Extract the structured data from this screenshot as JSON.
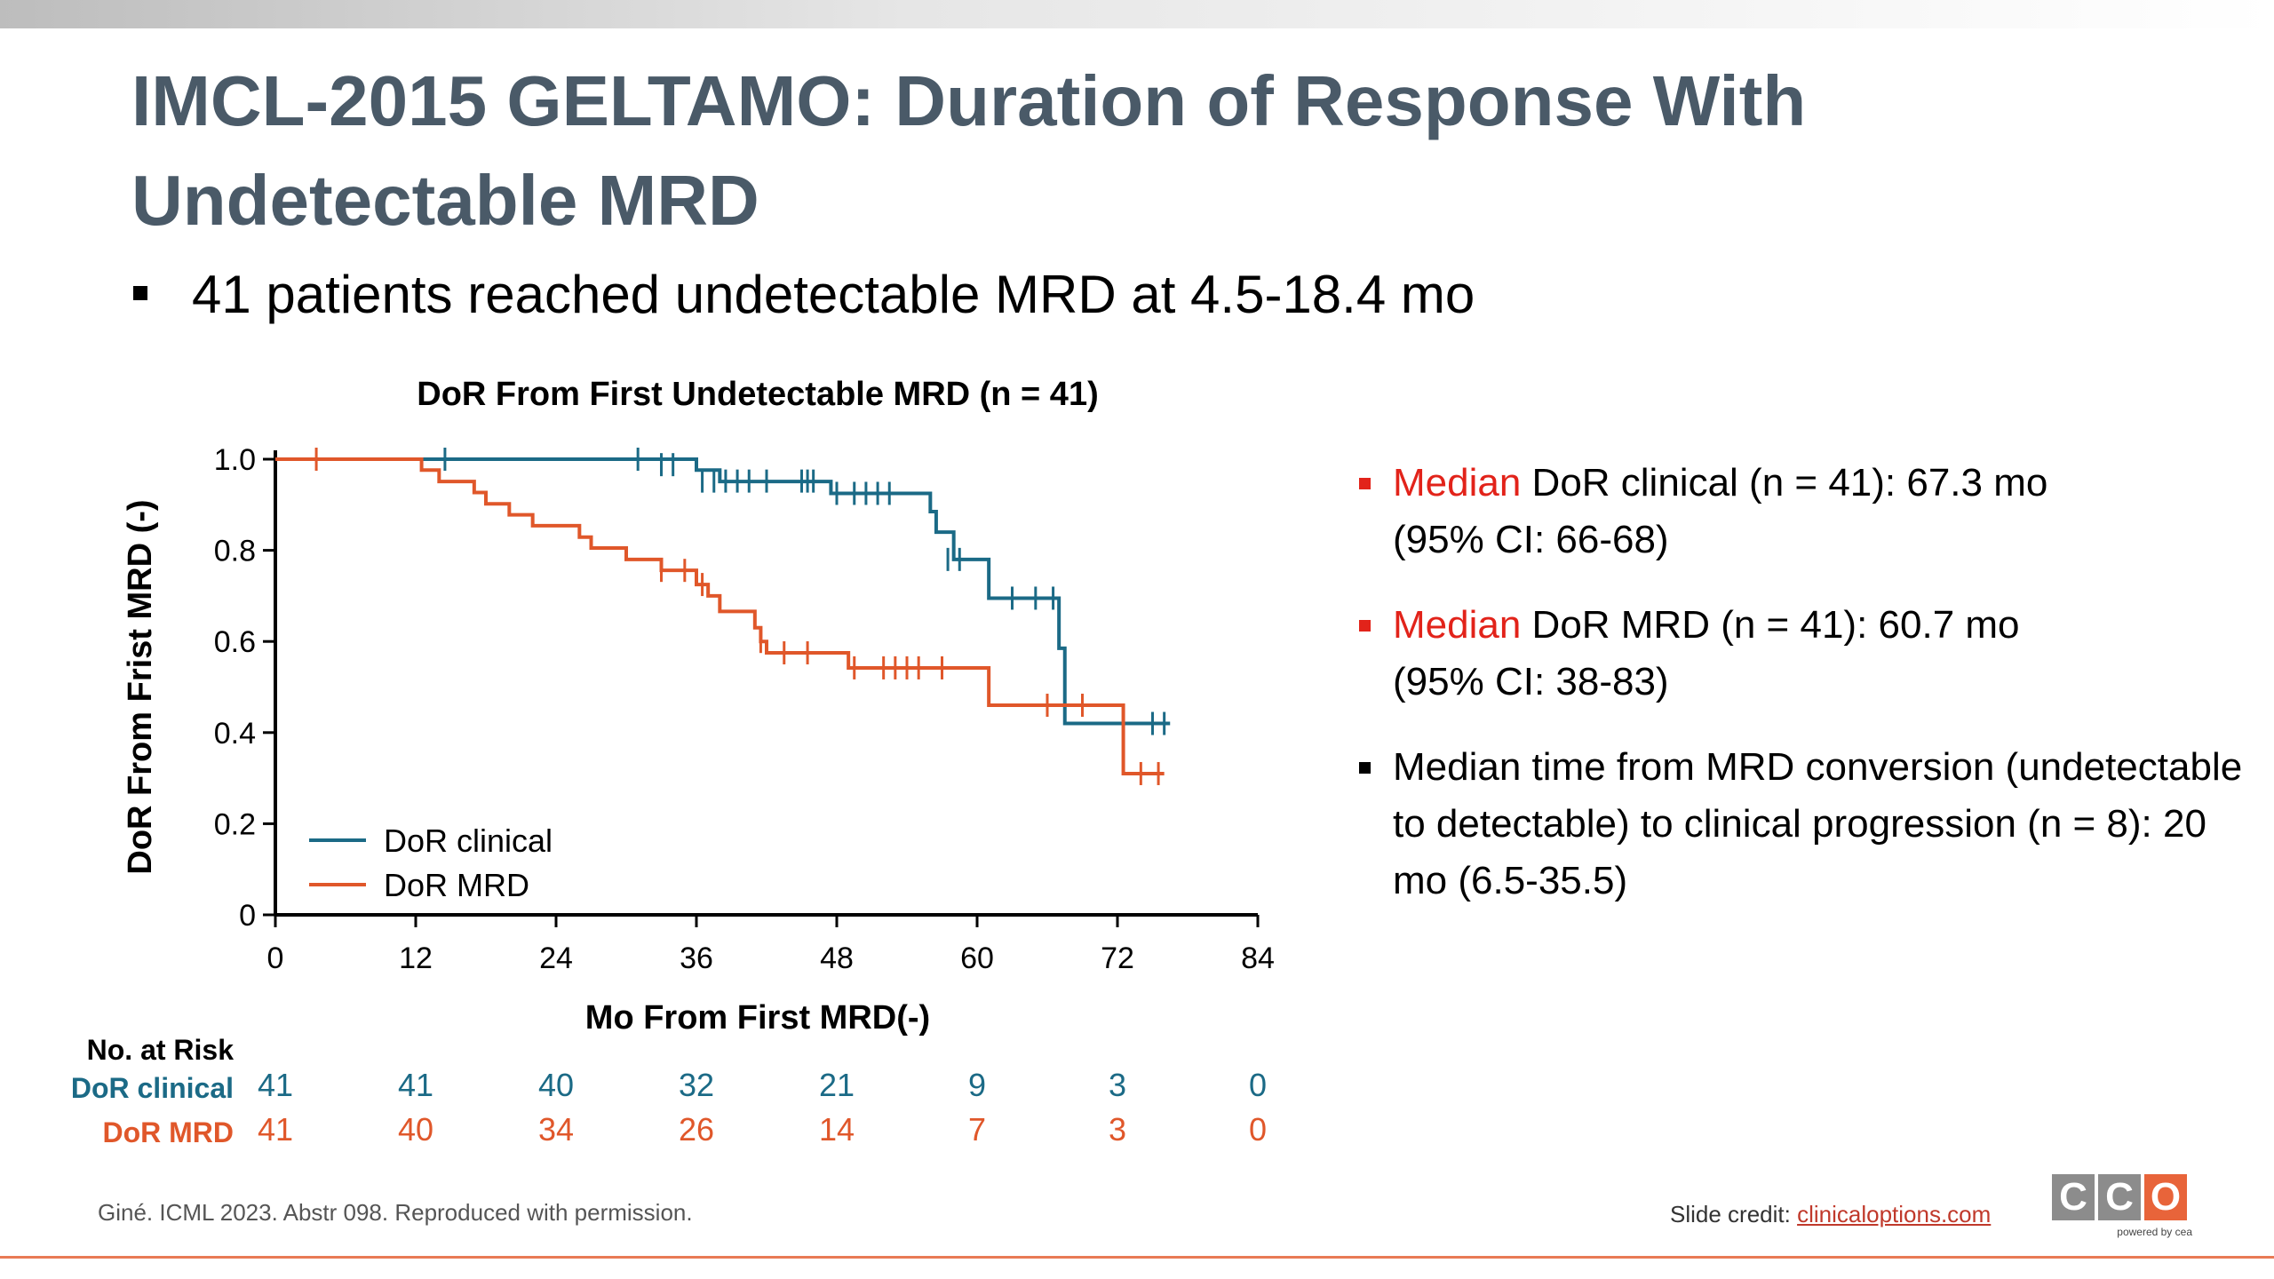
{
  "slide": {
    "title": "IMCL-2015 GELTAMO: Duration of Response With Undetectable MRD",
    "main_bullet": "41 patients reached undetectable MRD at 4.5-18.4 mo",
    "right_bullets": [
      {
        "highlight": "Median",
        "rest": " DoR clinical (n = 41): 67.3 mo",
        "line2": "(95% CI: 66-68)",
        "marker_color": "#e2231a"
      },
      {
        "highlight": "Median",
        "rest": " DoR MRD (n  = 41): 60.7 mo",
        "line2": "(95% CI: 38-83)",
        "marker_color": "#e2231a"
      },
      {
        "text": "Median time from MRD conversion (undetectable to detectable) to clinical progression (n = 8): 20 mo (6.5-35.5)",
        "marker_color": "#000000"
      }
    ],
    "footer_citation": "Giné. ICML 2023. Abstr 098. Reproduced with permission.",
    "footer_credit_label": "Slide credit: ",
    "footer_credit_link": "clinicaloptions.com",
    "logo": {
      "letters": [
        "C",
        "C",
        "O"
      ],
      "powered_by": "powered by cea"
    }
  },
  "colors": {
    "title": "#4a5a68",
    "clinical": "#1b6a86",
    "mrd": "#e0572a",
    "accent": "#e2231a"
  },
  "chart_data": {
    "type": "line",
    "title": "DoR From First Undetectable MRD (n = 41)",
    "xlabel": "Mo From First MRD(-)",
    "ylabel": "DoR From Frist MRD (-)",
    "xlim": [
      0,
      84
    ],
    "ylim": [
      0,
      1.0
    ],
    "xticks": [
      0,
      12,
      24,
      36,
      48,
      60,
      72,
      84
    ],
    "yticks": [
      0,
      0.2,
      0.4,
      0.6,
      0.8,
      1.0
    ],
    "ytick_labels": [
      "0",
      "0.2",
      "0.4",
      "0.6",
      "0.8",
      "1.0"
    ],
    "legend_position": "bottom-left",
    "series": [
      {
        "name": "DoR clinical",
        "color": "#1b6a86",
        "steps": [
          [
            0,
            1.0
          ],
          [
            36,
            0.976
          ],
          [
            38,
            0.951
          ],
          [
            47.5,
            0.925
          ],
          [
            56,
            0.885
          ],
          [
            56.5,
            0.84
          ],
          [
            58,
            0.78
          ],
          [
            61,
            0.695
          ],
          [
            67,
            0.585
          ],
          [
            67.5,
            0.42
          ],
          [
            76.5,
            0.42
          ]
        ],
        "censored": [
          [
            14.5,
            1.0
          ],
          [
            31,
            1.0
          ],
          [
            33,
            0.988
          ],
          [
            34,
            0.988
          ],
          [
            36.5,
            0.952
          ],
          [
            37.5,
            0.952
          ],
          [
            38.5,
            0.952
          ],
          [
            39.5,
            0.952
          ],
          [
            40.5,
            0.952
          ],
          [
            42,
            0.952
          ],
          [
            45,
            0.952
          ],
          [
            45.5,
            0.952
          ],
          [
            46,
            0.952
          ],
          [
            48,
            0.925
          ],
          [
            49.5,
            0.925
          ],
          [
            50.5,
            0.925
          ],
          [
            51.5,
            0.925
          ],
          [
            52.5,
            0.925
          ],
          [
            57.5,
            0.78
          ],
          [
            58.5,
            0.78
          ],
          [
            63,
            0.695
          ],
          [
            65,
            0.695
          ],
          [
            66.5,
            0.695
          ],
          [
            75,
            0.42
          ],
          [
            76,
            0.42
          ]
        ]
      },
      {
        "name": "DoR MRD",
        "color": "#e0572a",
        "steps": [
          [
            0,
            1.0
          ],
          [
            12.5,
            0.976
          ],
          [
            14,
            0.951
          ],
          [
            17,
            0.927
          ],
          [
            18,
            0.902
          ],
          [
            20,
            0.878
          ],
          [
            22,
            0.854
          ],
          [
            26,
            0.829
          ],
          [
            27,
            0.805
          ],
          [
            30,
            0.78
          ],
          [
            33,
            0.756
          ],
          [
            36,
            0.725
          ],
          [
            37,
            0.7
          ],
          [
            38,
            0.666
          ],
          [
            41,
            0.63
          ],
          [
            41.5,
            0.6
          ],
          [
            42,
            0.575
          ],
          [
            49,
            0.542
          ],
          [
            61,
            0.46
          ],
          [
            72.5,
            0.31
          ],
          [
            76,
            0.31
          ]
        ],
        "censored": [
          [
            3.5,
            1.0
          ],
          [
            33,
            0.756
          ],
          [
            35,
            0.756
          ],
          [
            36.5,
            0.725
          ],
          [
            41.5,
            0.6
          ],
          [
            43.5,
            0.575
          ],
          [
            45.5,
            0.575
          ],
          [
            49.5,
            0.542
          ],
          [
            52,
            0.542
          ],
          [
            53,
            0.542
          ],
          [
            54,
            0.542
          ],
          [
            55,
            0.542
          ],
          [
            57,
            0.542
          ],
          [
            66,
            0.46
          ],
          [
            69,
            0.46
          ],
          [
            74,
            0.31
          ],
          [
            75.5,
            0.31
          ]
        ]
      }
    ],
    "risk_table": {
      "header": "No. at Risk",
      "times": [
        0,
        12,
        24,
        36,
        48,
        60,
        72,
        84
      ],
      "rows": [
        {
          "label": "DoR clinical",
          "color": "#1b6a86",
          "values": [
            "41",
            "41",
            "40",
            "32",
            "21",
            "9",
            "3",
            "0"
          ]
        },
        {
          "label": "DoR MRD",
          "color": "#e0572a",
          "values": [
            "41",
            "40",
            "34",
            "26",
            "14",
            "7",
            "3",
            "0"
          ]
        }
      ]
    }
  }
}
